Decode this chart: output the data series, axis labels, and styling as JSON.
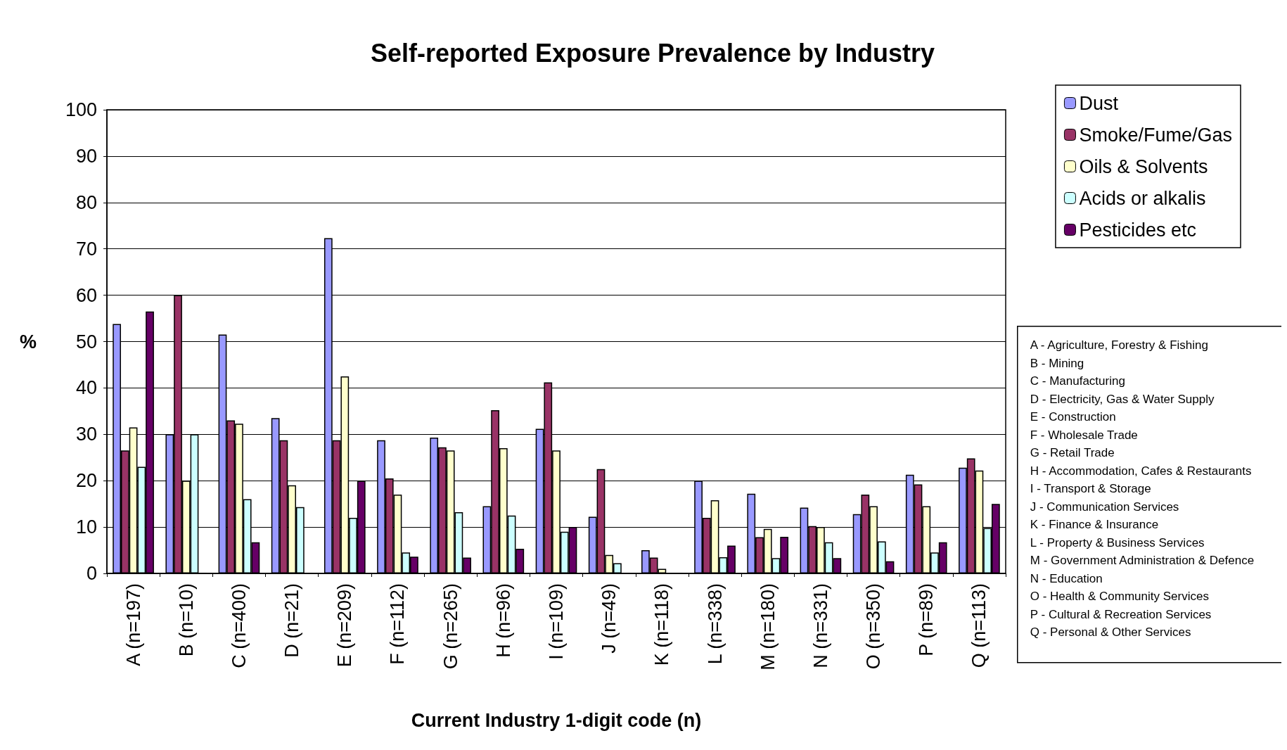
{
  "chart_data": {
    "type": "bar",
    "title": "Self-reported Exposure Prevalence by Industry",
    "xlabel": "Current Industry 1-digit code (n)",
    "ylabel": "%",
    "categories": [
      "A (n=197)",
      "B (n=10)",
      "C (n=400)",
      "D (n=21)",
      "E (n=209)",
      "F (n=112)",
      "G (n=265)",
      "H (n=96)",
      "I (n=109)",
      "J (n=49)",
      "K (n=118)",
      "L (n=338)",
      "M (n=180)",
      "N (n=331)",
      "O (n=350)",
      "P (n=89)",
      "Q (n=113)"
    ],
    "series": [
      {
        "name": "Dust",
        "color": "#9999ff",
        "values": [
          53.8,
          30,
          51.5,
          33.5,
          72.3,
          28.7,
          29.3,
          14.5,
          31.2,
          12.2,
          5,
          20,
          17.2,
          14.2,
          12.8,
          21.3,
          22.8
        ]
      },
      {
        "name": "Smoke/Fume/Gas",
        "color": "#993366",
        "values": [
          26.5,
          60,
          33,
          28.7,
          28.7,
          20.5,
          27.2,
          35.2,
          41.2,
          22.5,
          3.4,
          12,
          7.8,
          10.2,
          17,
          19.2,
          24.8
        ]
      },
      {
        "name": "Oils & Solvents",
        "color": "#ffffcc",
        "values": [
          31.5,
          20,
          32.3,
          19,
          42.5,
          17,
          26.5,
          27,
          26.5,
          4,
          1,
          15.8,
          9.6,
          10,
          14.5,
          14.5,
          22.2
        ]
      },
      {
        "name": "Acids or alkalis",
        "color": "#ccffff",
        "values": [
          23,
          30,
          16,
          14.3,
          12,
          4.5,
          13.2,
          12.5,
          9,
          2.2,
          0,
          3.5,
          3.3,
          6.7,
          6.9,
          4.5,
          9.8
        ]
      },
      {
        "name": "Pesticides etc",
        "color": "#660066",
        "values": [
          56.5,
          0,
          6.7,
          0,
          20,
          3.6,
          3.4,
          5.3,
          10,
          0,
          0,
          6,
          7.9,
          3.3,
          2.6,
          6.7,
          15
        ]
      }
    ],
    "ylim": [
      0,
      100
    ],
    "yticks": [
      0,
      10,
      20,
      30,
      40,
      50,
      60,
      70,
      80,
      90,
      100
    ],
    "grid": "y",
    "legend": "top right",
    "annotations": [
      "A - Agriculture, Forestry & Fishing",
      "B - Mining",
      "C - Manufacturing",
      "D - Electricity, Gas & Water Supply",
      "E - Construction",
      "F - Wholesale Trade",
      "G - Retail Trade",
      "H - Accommodation, Cafes & Restaurants",
      "I - Transport & Storage",
      "J - Communication Services",
      "K - Finance & Insurance",
      "L - Property & Business Services",
      "M - Government Administration & Defence",
      "N - Education",
      "O - Health & Community Services",
      "P - Cultural & Recreation Services",
      "Q - Personal & Other Services"
    ]
  }
}
